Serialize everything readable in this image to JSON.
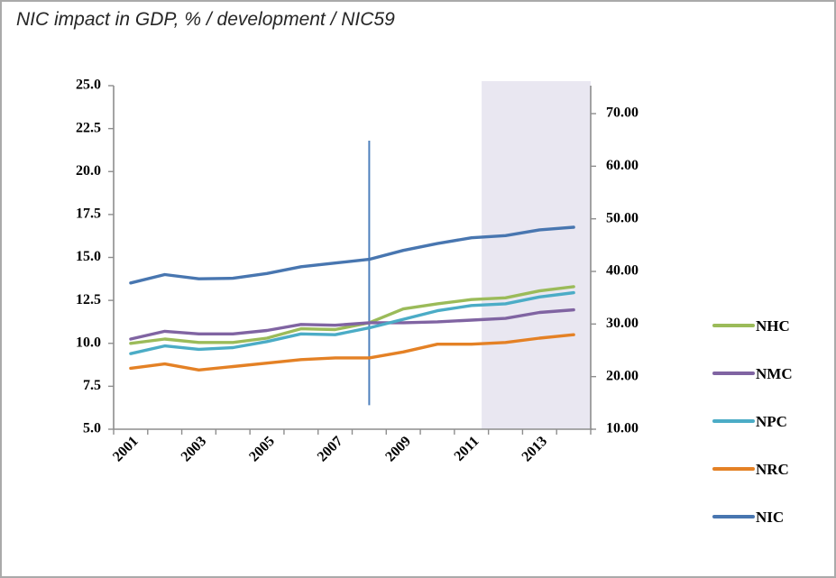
{
  "window": {
    "title": "NIC impact in GDP, % / development / NIC59"
  },
  "chart_data": {
    "type": "line",
    "title": "NIC impact in GDP, % / development / NIC59",
    "grid": false,
    "x": [
      2001,
      2002,
      2003,
      2004,
      2005,
      2006,
      2007,
      2008,
      2009,
      2010,
      2011,
      2012,
      2013,
      2014
    ],
    "x_axis": {
      "tick_labels": [
        "2001",
        "2003",
        "2005",
        "2007",
        "2009",
        "2011",
        "2013"
      ],
      "label_rotation_deg": -45
    },
    "left_axis": {
      "min": 5.0,
      "max": 25.0,
      "step": 2.5,
      "tick_labels": [
        "25.0",
        "22.5",
        "20.0",
        "17.5",
        "15.0",
        "12.5",
        "10.0",
        "7.5",
        "5.0"
      ]
    },
    "right_axis": {
      "min": 10.0,
      "max": 70.0,
      "step": 10.0,
      "tick_labels": [
        "70.00",
        "60.00",
        "50.00",
        "40.00",
        "30.00",
        "20.00",
        "10.00"
      ]
    },
    "series": [
      {
        "name": "NHC",
        "axis": "left",
        "color": "#9BBB59",
        "values": [
          10.0,
          10.25,
          10.05,
          10.05,
          10.3,
          10.85,
          10.8,
          11.2,
          12.0,
          12.3,
          12.55,
          12.65,
          13.05,
          13.3
        ]
      },
      {
        "name": "NMC",
        "axis": "left",
        "color": "#8064A2",
        "values": [
          10.25,
          10.7,
          10.55,
          10.55,
          10.75,
          11.1,
          11.05,
          11.2,
          11.2,
          11.25,
          11.35,
          11.45,
          11.8,
          11.95
        ]
      },
      {
        "name": "NPC",
        "axis": "left",
        "color": "#4BACC6",
        "values": [
          9.4,
          9.85,
          9.65,
          9.75,
          10.1,
          10.55,
          10.5,
          10.9,
          11.4,
          11.9,
          12.2,
          12.3,
          12.7,
          12.95
        ]
      },
      {
        "name": "NRC",
        "axis": "left",
        "color": "#E48125",
        "values": [
          8.55,
          8.8,
          8.45,
          8.65,
          8.85,
          9.05,
          9.15,
          9.15,
          9.5,
          9.95,
          9.95,
          10.05,
          10.3,
          10.5
        ]
      },
      {
        "name": "NIC",
        "axis": "right",
        "color": "#4876B0",
        "values": [
          37.8,
          39.4,
          38.6,
          38.7,
          39.6,
          40.9,
          41.6,
          42.3,
          44.0,
          45.3,
          46.4,
          46.8,
          47.9,
          48.4
        ]
      }
    ],
    "annotations": {
      "vertical_line": {
        "x": 2008,
        "y_min_left": 6.4,
        "y_max_left": 21.8,
        "color": "#4F81BD"
      },
      "shaded_region": {
        "x_start": 2011.3,
        "x_end": 2014.5,
        "color": "#E9E7F1"
      }
    },
    "legend": {
      "position": "right",
      "entries": [
        "NHC",
        "NMC",
        "NPC",
        "NRC",
        "NIC"
      ]
    },
    "axis_color": "#8E8E8E"
  }
}
